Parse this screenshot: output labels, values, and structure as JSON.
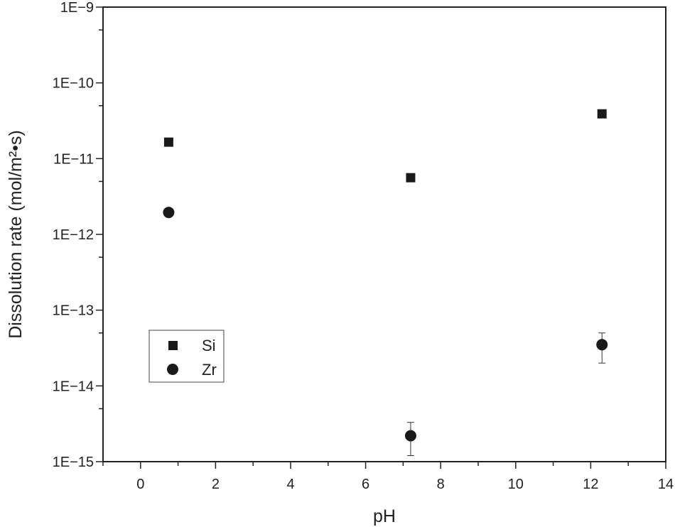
{
  "chart_data": {
    "type": "scatter",
    "xlabel": "pH",
    "ylabel": "Dissolution rate (mol/m²•s)",
    "xlim": [
      -1,
      14
    ],
    "ylim": [
      1e-15,
      1e-09
    ],
    "yscale": "log",
    "xticks": [
      0,
      2,
      4,
      6,
      8,
      10,
      12,
      14
    ],
    "xtick_labels": [
      "0",
      "2",
      "4",
      "6",
      "8",
      "10",
      "12",
      "14"
    ],
    "yticks": [
      1e-15,
      1e-14,
      1e-13,
      1e-12,
      1e-11,
      1e-10,
      1e-09
    ],
    "ytick_labels": [
      "1E−15",
      "1E−14",
      "1E−13",
      "1E−12",
      "1E−11",
      "1E−10",
      "1E−9"
    ],
    "grid": false,
    "legend_position": "lower-left",
    "series": [
      {
        "name": "Si",
        "marker": "square",
        "color": "#1a1a1a",
        "points": [
          {
            "x": 0.75,
            "y": 1.65e-11
          },
          {
            "x": 7.2,
            "y": 5.6e-12
          },
          {
            "x": 12.3,
            "y": 3.9e-11
          }
        ]
      },
      {
        "name": "Zr",
        "marker": "circle",
        "color": "#1a1a1a",
        "points": [
          {
            "x": 0.75,
            "y": 1.95e-12
          },
          {
            "x": 7.2,
            "y": 2.2e-15,
            "err_low": 1.2e-15,
            "err_high": 3.3e-15
          },
          {
            "x": 12.3,
            "y": 3.5e-14,
            "err_low": 2e-14,
            "err_high": 5e-14
          }
        ]
      }
    ]
  }
}
